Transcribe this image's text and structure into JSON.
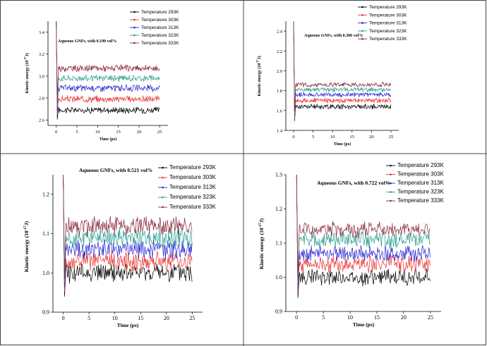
{
  "chart_data": [
    {
      "type": "line",
      "annotation": "Aqueous GNFs, with 0.190 vol%",
      "xlabel": "Time (ps)",
      "ylabel": "Kinetic energy (10",
      "ylabel_exp": "-17",
      "ylabel_unit": "J)",
      "xlim": [
        -2,
        27
      ],
      "ylim": [
        2.55,
        3.5
      ],
      "xticks": [
        "0",
        "5",
        "10",
        "15",
        "20",
        "25"
      ],
      "yticks": [
        "2.6",
        "2.8",
        "3.0",
        "3.2",
        "3.4"
      ],
      "ytick_values": [
        2.6,
        2.8,
        3.0,
        3.2,
        3.4
      ],
      "peak": 3.5,
      "grid": false,
      "legend_position": "top-right",
      "series": [
        {
          "name": "Temperature 293K",
          "color": "#000000",
          "mean": 2.69,
          "amp": 0.025
        },
        {
          "name": "Temperature 303K",
          "color": "#e8302c",
          "mean": 2.79,
          "amp": 0.025
        },
        {
          "name": "Temperature 313K",
          "color": "#2323d4",
          "mean": 2.89,
          "amp": 0.025
        },
        {
          "name": "Temperature 323K",
          "color": "#2a9d8f",
          "mean": 2.98,
          "amp": 0.025
        },
        {
          "name": "Temperature 333K",
          "color": "#8b2a3a",
          "mean": 3.07,
          "amp": 0.025
        }
      ]
    },
    {
      "type": "line",
      "annotation": "Aqueous GNFs, with 0.306 vol%",
      "xlabel": "Time (ps)",
      "ylabel": "Kinetic energy (10",
      "ylabel_exp": "-17",
      "ylabel_unit": "J)",
      "xlim": [
        -2,
        27
      ],
      "ylim": [
        1.4,
        2.5
      ],
      "xticks": [
        "0",
        "5",
        "10",
        "15",
        "20",
        "25"
      ],
      "yticks": [
        "1.4",
        "1.6",
        "1.8",
        "2.0",
        "2.2",
        "2.4"
      ],
      "ytick_values": [
        1.4,
        1.6,
        1.8,
        2.0,
        2.2,
        2.4
      ],
      "peak": 2.5,
      "grid": false,
      "legend_position": "top-right",
      "series": [
        {
          "name": "Temperature 293K",
          "color": "#000000",
          "mean": 1.64,
          "amp": 0.02
        },
        {
          "name": "Temperature 303K",
          "color": "#e8302c",
          "mean": 1.7,
          "amp": 0.02
        },
        {
          "name": "Temperature 313K",
          "color": "#2323d4",
          "mean": 1.76,
          "amp": 0.02
        },
        {
          "name": "Temperature 323K",
          "color": "#2a9d8f",
          "mean": 1.81,
          "amp": 0.02
        },
        {
          "name": "Temperature 333K",
          "color": "#8b2a3a",
          "mean": 1.86,
          "amp": 0.02
        }
      ]
    },
    {
      "type": "line",
      "annotation": "Aqueous GNFs, with 0.521 vol%",
      "xlabel": "Time (ps)",
      "ylabel": "Kinetic energy (10",
      "ylabel_exp": "-17",
      "ylabel_unit": "J)",
      "xlim": [
        -2,
        27
      ],
      "ylim": [
        0.9,
        1.25
      ],
      "xticks": [
        "0",
        "5",
        "10",
        "15",
        "20",
        "25"
      ],
      "yticks": [
        "0.9",
        "1.0",
        "1.1",
        "1.2"
      ],
      "ytick_values": [
        0.9,
        1.0,
        1.1,
        1.2
      ],
      "peak": 1.25,
      "grid": false,
      "legend_position": "top-right",
      "series": [
        {
          "name": "Temperature 293K",
          "color": "#000000",
          "mean": 1.0,
          "amp": 0.02
        },
        {
          "name": "Temperature 303K",
          "color": "#e8302c",
          "mean": 1.03,
          "amp": 0.02
        },
        {
          "name": "Temperature 313K",
          "color": "#2323d4",
          "mean": 1.06,
          "amp": 0.02
        },
        {
          "name": "Temperature 323K",
          "color": "#2a9d8f",
          "mean": 1.09,
          "amp": 0.02
        },
        {
          "name": "Temperature 333K",
          "color": "#8b2a3a",
          "mean": 1.12,
          "amp": 0.02
        }
      ]
    },
    {
      "type": "line",
      "annotation": "Aqueous GNFs, with 0.722 vol%",
      "xlabel": "Time (ps)",
      "ylabel": "Kinetic energy (10",
      "ylabel_exp": "-17",
      "ylabel_unit": "J)",
      "xlim": [
        -2,
        27
      ],
      "ylim": [
        0.9,
        1.3
      ],
      "xticks": [
        "0",
        "5",
        "10",
        "15",
        "20",
        "25"
      ],
      "yticks": [
        "0.9",
        "1.0",
        "1.1",
        "1.2",
        "1.3"
      ],
      "ytick_values": [
        0.9,
        1.0,
        1.1,
        1.2,
        1.3
      ],
      "peak": 1.3,
      "grid": false,
      "legend_position": "top-right",
      "series": [
        {
          "name": "Temperature 293K",
          "color": "#000000",
          "mean": 1.0,
          "amp": 0.02
        },
        {
          "name": "Temperature 303K",
          "color": "#e8302c",
          "mean": 1.04,
          "amp": 0.02
        },
        {
          "name": "Temperature 313K",
          "color": "#2323d4",
          "mean": 1.07,
          "amp": 0.02
        },
        {
          "name": "Temperature 323K",
          "color": "#2a9d8f",
          "mean": 1.11,
          "amp": 0.02
        },
        {
          "name": "Temperature 333K",
          "color": "#8b2a3a",
          "mean": 1.14,
          "amp": 0.02
        }
      ]
    }
  ]
}
